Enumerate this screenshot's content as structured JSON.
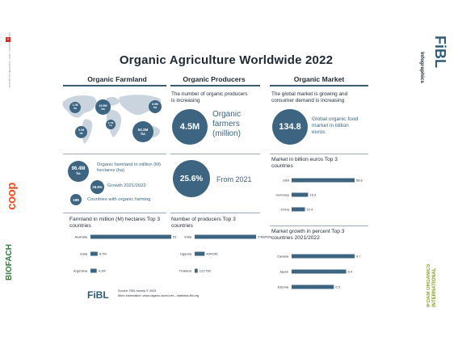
{
  "title": "Organic Agriculture Worldwide 2022",
  "brand": {
    "fibl_logo": "FiBL",
    "side_label": "Infographics",
    "coop_logo": "coop",
    "biofach_logo": "BIOFACH",
    "ifoam_logo": "IFOAM ORGANICS INTERNATIONAL",
    "footer_logo": "FiBL",
    "footer_text_1": "Source: FiBL survey © 2024",
    "footer_text_2": "More information: www.organic-world.net – statistics.fibl.org",
    "colors": {
      "primary": "#3d6581",
      "text": "#1f2a36",
      "fibl": "#2e5c78",
      "coop": "#e8531f",
      "biofach": "#2f7d3a",
      "ifoam": "#8aa02a"
    }
  },
  "farmland": {
    "heading": "Organic Farmland",
    "map_bubbles": [
      {
        "value": "1.1M",
        "unit": "ha"
      },
      {
        "value": "16.9M",
        "unit": "ha"
      },
      {
        "value": "6.5M",
        "unit": "ha"
      },
      {
        "value": "2.7M",
        "unit": "ha"
      },
      {
        "value": "5.7M",
        "unit": "ha"
      },
      {
        "value": "53.2M",
        "unit": "ha"
      }
    ],
    "stat_hectares": {
      "value": "96.4M",
      "unit": "ha",
      "label": "Organic farmland in million (M) hectares (ha)"
    },
    "stat_growth": {
      "value": "25.6%",
      "label": "Growth 2021/2022"
    },
    "stat_countries": {
      "value": "188",
      "label": "Countries with organic farming"
    },
    "chart_title": "Farmland in million (M) hectares Top 3 countries"
  },
  "producers": {
    "heading": "Organic Producers",
    "intro": "The number of organic producers is increasing",
    "big_value": "4.5M",
    "big_label": "Organic farmers (million)",
    "growth_value": "25.6%",
    "growth_label": "From 2021",
    "chart_title": "Number of producers Top 3 countries"
  },
  "market": {
    "heading": "Organic Market",
    "intro": "The global market is growing and consumer demand is increasing",
    "big_value": "134.8",
    "big_label": "Global organic food market in billion euros",
    "chart1_title": "Market in billion euros Top 3 countries",
    "chart2_title": "Market growth in percent Top 3 countries 2021/2022"
  },
  "chart_data": [
    {
      "type": "bar",
      "title": "Farmland in million (M) hectares Top 3 countries",
      "categories": [
        "Australia",
        "India",
        "Argentina"
      ],
      "values": [
        53.2,
        4.7,
        4.1
      ],
      "value_labels": [
        "53.2M",
        "4.7M",
        "4.1M"
      ],
      "max": 53.2
    },
    {
      "type": "bar",
      "title": "Number of producers Top 3 countries",
      "categories": [
        "India",
        "Uganda",
        "Thailand"
      ],
      "values": [
        2488500,
        404246,
        121790
      ],
      "value_labels": [
        "2'488'500",
        "404'246",
        "121'790"
      ],
      "max": 2488500
    },
    {
      "type": "bar",
      "title": "Market in billion euros Top 3 countries",
      "categories": [
        "USA",
        "Germany",
        "China"
      ],
      "values": [
        58.6,
        15.3,
        12.4
      ],
      "value_labels": [
        "58.6",
        "15.3",
        "12.4"
      ],
      "max": 58.6
    },
    {
      "type": "bar",
      "title": "Market growth in percent Top 3 countries 2021/2022",
      "categories": [
        "Canada",
        "Japan",
        "Estonia"
      ],
      "values": [
        9.7,
        8.4,
        6.5
      ],
      "value_labels": [
        "9.7",
        "8.4",
        "6.5"
      ],
      "max": 9.7
    }
  ]
}
